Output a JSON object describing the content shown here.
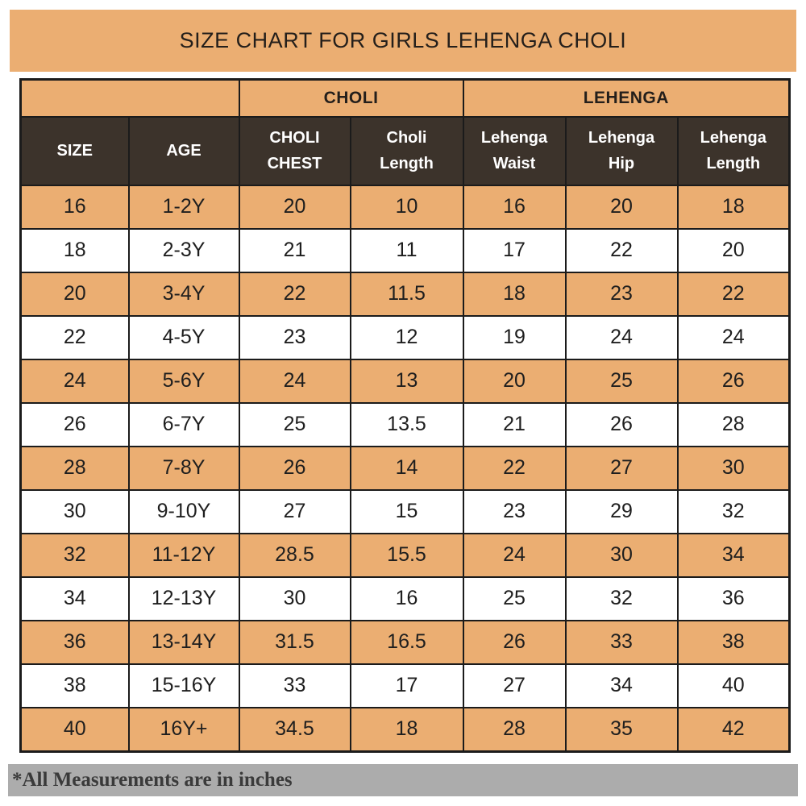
{
  "banner": {
    "title": "SIZE CHART FOR GIRLS LEHENGA CHOLI"
  },
  "chart_data": {
    "type": "table",
    "title": "SIZE CHART FOR GIRLS LEHENGA CHOLI",
    "group_headers": [
      {
        "label": "",
        "colspan": 2
      },
      {
        "label": "CHOLI",
        "colspan": 2
      },
      {
        "label": "LEHENGA",
        "colspan": 3
      }
    ],
    "columns": [
      "SIZE",
      "AGE",
      "CHOLI CHEST",
      "Choli Length",
      "Lehenga Waist",
      "Lehenga Hip",
      "Lehenga Length"
    ],
    "rows": [
      [
        "16",
        "1-2Y",
        "20",
        "10",
        "16",
        "20",
        "18"
      ],
      [
        "18",
        "2-3Y",
        "21",
        "11",
        "17",
        "22",
        "20"
      ],
      [
        "20",
        "3-4Y",
        "22",
        "11.5",
        "18",
        "23",
        "22"
      ],
      [
        "22",
        "4-5Y",
        "23",
        "12",
        "19",
        "24",
        "24"
      ],
      [
        "24",
        "5-6Y",
        "24",
        "13",
        "20",
        "25",
        "26"
      ],
      [
        "26",
        "6-7Y",
        "25",
        "13.5",
        "21",
        "26",
        "28"
      ],
      [
        "28",
        "7-8Y",
        "26",
        "14",
        "22",
        "27",
        "30"
      ],
      [
        "30",
        "9-10Y",
        "27",
        "15",
        "23",
        "29",
        "32"
      ],
      [
        "32",
        "11-12Y",
        "28.5",
        "15.5",
        "24",
        "30",
        "34"
      ],
      [
        "34",
        "12-13Y",
        "30",
        "16",
        "25",
        "32",
        "36"
      ],
      [
        "36",
        "13-14Y",
        "31.5",
        "16.5",
        "26",
        "33",
        "38"
      ],
      [
        "38",
        "15-16Y",
        "33",
        "17",
        "27",
        "34",
        "40"
      ],
      [
        "40",
        "16Y+",
        "34.5",
        "18",
        "28",
        "35",
        "42"
      ]
    ],
    "footnote": "*All Measurements are in inches",
    "layout_hints": {
      "row_striping": "odd rows tan, even rows white, starting tan",
      "units": "inches"
    }
  },
  "colors": {
    "tan": "#ebae72",
    "dark_brown": "#3c332b",
    "border_black": "#1b1b1b",
    "footer_gray": "#acacac",
    "title_text": "#241f1b",
    "header_text": "#ffffff"
  }
}
